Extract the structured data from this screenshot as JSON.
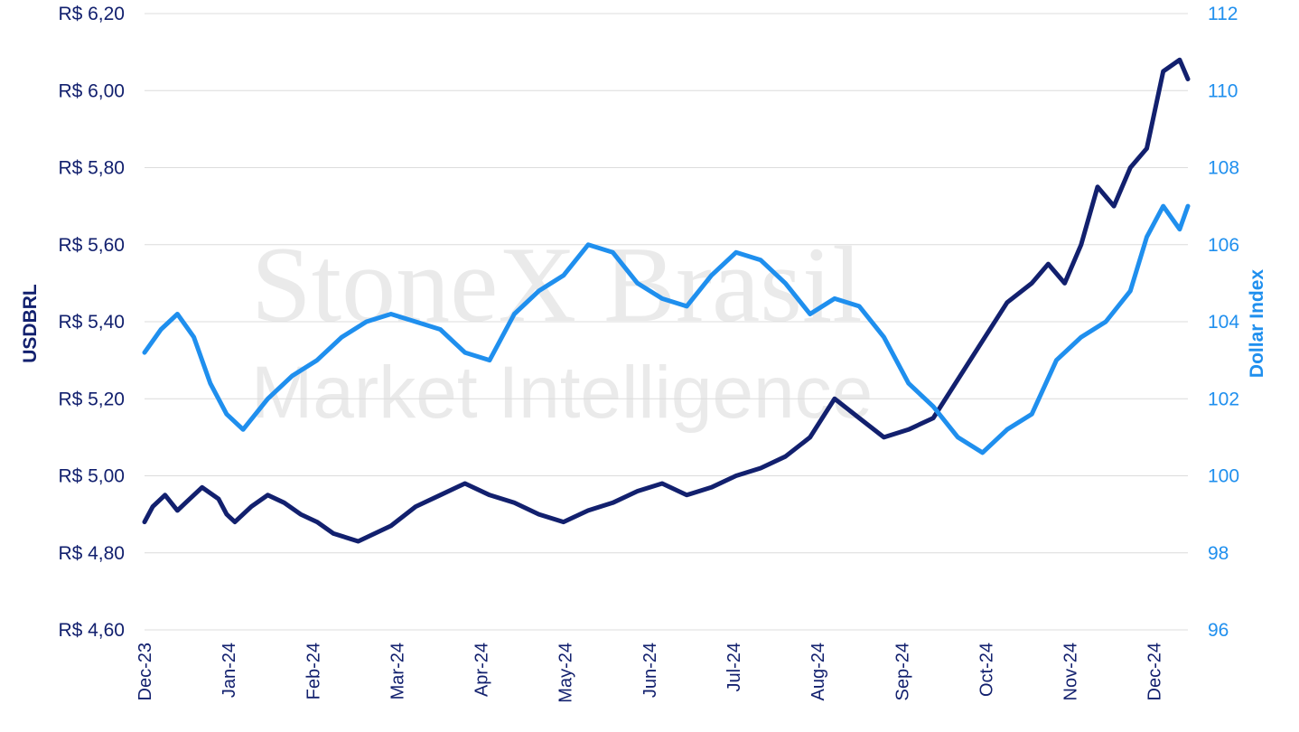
{
  "watermark": {
    "line1": "StoneX Brasil",
    "line2": "Market Intelligence"
  },
  "chart_data": {
    "type": "line",
    "title": "",
    "xlabel": "",
    "ylabel_left": "USDBRL",
    "ylabel_right": "Dollar Index",
    "ylim_left": [
      4.6,
      6.2
    ],
    "ylim_right": [
      96,
      112
    ],
    "yticks_left": [
      "R$ 4,60",
      "R$ 4,80",
      "R$ 5,00",
      "R$ 5,20",
      "R$ 5,40",
      "R$ 5,60",
      "R$ 5,80",
      "R$ 6,00",
      "R$ 6,20"
    ],
    "yticks_right": [
      "96",
      "98",
      "100",
      "102",
      "104",
      "106",
      "108",
      "110",
      "112"
    ],
    "x_ticks": [
      "Dec-23",
      "Jan-24",
      "Feb-24",
      "Mar-24",
      "Apr-24",
      "May-24",
      "Jun-24",
      "Jul-24",
      "Aug-24",
      "Sep-24",
      "Oct-24",
      "Nov-24",
      "Dec-24"
    ],
    "grid": true,
    "colors": {
      "usdbrl": "#12206e",
      "dxy": "#1f8fee",
      "grid": "#dcdcdc"
    },
    "series": [
      {
        "name": "USDBRL",
        "axis": "left",
        "x": [
          0,
          0.1,
          0.25,
          0.4,
          0.5,
          0.7,
          0.9,
          1.0,
          1.1,
          1.3,
          1.5,
          1.7,
          1.9,
          2.1,
          2.3,
          2.6,
          3.0,
          3.3,
          3.6,
          3.9,
          4.2,
          4.5,
          4.8,
          5.1,
          5.4,
          5.7,
          6.0,
          6.3,
          6.6,
          6.9,
          7.2,
          7.5,
          7.8,
          8.1,
          8.4,
          8.7,
          9.0,
          9.3,
          9.6,
          9.9,
          10.2,
          10.5,
          10.8,
          11.0,
          11.2,
          11.4,
          11.6,
          11.8,
          12.0,
          12.2,
          12.4,
          12.6,
          12.7
        ],
        "values": [
          4.88,
          4.92,
          4.95,
          4.91,
          4.93,
          4.97,
          4.94,
          4.9,
          4.88,
          4.92,
          4.95,
          4.93,
          4.9,
          4.88,
          4.85,
          4.83,
          4.87,
          4.92,
          4.95,
          4.98,
          4.95,
          4.93,
          4.9,
          4.88,
          4.91,
          4.93,
          4.96,
          4.98,
          4.95,
          4.97,
          5.0,
          5.02,
          5.05,
          5.1,
          5.2,
          5.15,
          5.1,
          5.12,
          5.15,
          5.25,
          5.35,
          5.45,
          5.5,
          5.55,
          5.5,
          5.6,
          5.75,
          5.7,
          5.8,
          5.85,
          6.05,
          6.08,
          6.03
        ],
        "values_detail_note": ""
      },
      {
        "name": "Dollar Index",
        "axis": "right",
        "x": [
          0,
          0.2,
          0.4,
          0.6,
          0.8,
          1.0,
          1.2,
          1.5,
          1.8,
          2.1,
          2.4,
          2.7,
          3.0,
          3.3,
          3.6,
          3.9,
          4.2,
          4.5,
          4.8,
          5.1,
          5.4,
          5.7,
          6.0,
          6.3,
          6.6,
          6.9,
          7.2,
          7.5,
          7.8,
          8.1,
          8.4,
          8.7,
          9.0,
          9.3,
          9.6,
          9.9,
          10.2,
          10.5,
          10.8,
          11.1,
          11.4,
          11.7,
          12.0,
          12.2,
          12.4,
          12.6,
          12.7
        ],
        "values": [
          103.2,
          103.8,
          104.2,
          103.6,
          102.4,
          101.6,
          101.2,
          102.0,
          102.6,
          103.0,
          103.6,
          104.0,
          104.2,
          104.0,
          103.8,
          103.2,
          103.0,
          104.2,
          104.8,
          105.2,
          106.0,
          105.8,
          105.0,
          104.6,
          104.4,
          105.2,
          105.8,
          105.6,
          105.0,
          104.2,
          104.6,
          104.4,
          103.6,
          102.4,
          101.8,
          101.0,
          100.6,
          101.2,
          101.6,
          103.0,
          103.6,
          104.0,
          104.8,
          106.2,
          107.0,
          106.4,
          107.0
        ],
        "values_detail_note": ""
      }
    ]
  }
}
